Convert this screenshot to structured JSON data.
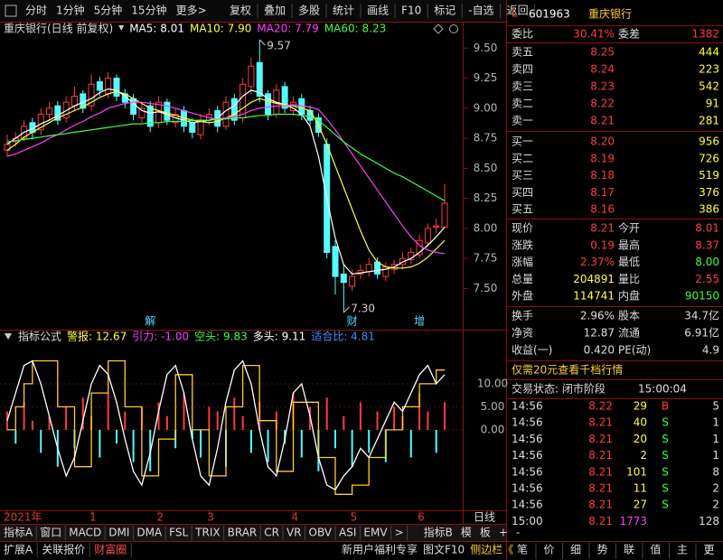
{
  "toolbar": {
    "tabs": [
      "分时",
      "1分钟",
      "5分钟",
      "15分钟",
      "更多>"
    ],
    "buttons": [
      "复权",
      "叠加",
      "多股",
      "统计",
      "画线",
      "F10",
      "标记",
      "-自选",
      "返回"
    ]
  },
  "chart_data": [
    {
      "type": "candlestick",
      "title": "重庆银行(日线 前复权)",
      "categories": [
        "2021年",
        null,
        null,
        null,
        null,
        null,
        null,
        null,
        null,
        null,
        "1",
        null,
        null,
        null,
        null,
        null,
        null,
        null,
        "2",
        null,
        null,
        null,
        null,
        null,
        "3",
        null,
        null,
        null,
        null,
        null,
        null,
        null,
        null,
        null,
        "4",
        null,
        null,
        null,
        null,
        null,
        null,
        "5",
        null,
        null,
        null,
        null,
        null,
        null,
        null,
        "6",
        null,
        null,
        null
      ],
      "open": [
        8.65,
        8.72,
        8.75,
        8.88,
        8.82,
        8.95,
        9.02,
        8.92,
        9.02,
        9.12,
        9.02,
        9.22,
        9.12,
        9.25,
        9.12,
        9.08,
        8.92,
        9.02,
        8.88,
        9.05,
        8.88,
        8.98,
        8.88,
        8.78,
        8.9,
        8.98,
        8.85,
        9.08,
        8.92,
        9.18,
        9.38,
        9.12,
        8.95,
        9.18,
        8.98,
        9.08,
        8.98,
        8.92,
        8.7,
        7.85,
        7.62,
        7.52,
        7.62,
        7.64,
        7.72,
        7.6,
        7.66,
        7.7,
        7.74,
        7.78,
        7.88,
        8.01,
        8.01
      ],
      "high": [
        8.78,
        8.8,
        8.9,
        8.92,
        9.0,
        9.05,
        9.06,
        9.1,
        9.18,
        9.15,
        9.28,
        9.26,
        9.3,
        9.28,
        9.16,
        9.12,
        9.05,
        9.06,
        9.1,
        9.08,
        9.0,
        9.02,
        8.92,
        8.95,
        9.0,
        9.02,
        9.1,
        9.12,
        9.25,
        9.42,
        9.57,
        9.15,
        9.2,
        9.22,
        9.1,
        9.12,
        9.02,
        8.96,
        8.75,
        7.9,
        7.7,
        7.66,
        7.7,
        7.75,
        7.76,
        7.72,
        7.74,
        7.8,
        7.84,
        7.95,
        8.04,
        8.08,
        8.37
      ],
      "low": [
        8.6,
        8.68,
        8.72,
        8.74,
        8.78,
        8.9,
        8.86,
        8.88,
        8.98,
        8.96,
        8.98,
        9.1,
        9.08,
        9.06,
        9.0,
        8.9,
        8.88,
        8.8,
        8.84,
        8.86,
        8.84,
        8.8,
        8.75,
        8.74,
        8.86,
        8.8,
        8.82,
        8.86,
        8.88,
        9.12,
        9.05,
        8.9,
        8.92,
        8.96,
        8.94,
        8.9,
        8.86,
        8.76,
        7.75,
        7.45,
        7.3,
        7.48,
        7.58,
        7.6,
        7.58,
        7.56,
        7.62,
        7.66,
        7.7,
        7.75,
        7.85,
        7.96,
        8.0
      ],
      "close": [
        8.7,
        8.75,
        8.85,
        8.8,
        8.95,
        9.0,
        8.9,
        9.05,
        9.1,
        9.0,
        9.2,
        9.15,
        9.25,
        9.1,
        9.05,
        8.95,
        9.0,
        8.85,
        9.05,
        8.9,
        8.95,
        8.85,
        8.8,
        8.9,
        8.95,
        8.85,
        9.05,
        8.9,
        9.2,
        9.35,
        9.1,
        8.95,
        9.15,
        9.0,
        9.05,
        8.95,
        8.9,
        8.8,
        7.8,
        7.6,
        7.55,
        7.6,
        7.65,
        7.7,
        7.62,
        7.68,
        7.7,
        7.75,
        7.8,
        7.9,
        8.0,
        8.02,
        8.21
      ],
      "up_color": "#ff3c3c",
      "down_color": "#54fcfc",
      "series": [
        {
          "name": "MA5: 8.01",
          "color": "#ffffff",
          "values": [
            8.7,
            8.75,
            8.8,
            8.83,
            8.87,
            8.9,
            8.94,
            8.98,
            9.02,
            9.05,
            9.08,
            9.13,
            9.16,
            9.15,
            9.1,
            9.04,
            8.98,
            8.96,
            8.97,
            8.95,
            8.92,
            8.9,
            8.88,
            8.89,
            8.9,
            8.92,
            8.98,
            9.02,
            9.1,
            9.15,
            9.13,
            9.08,
            9.05,
            9.03,
            9.0,
            8.95,
            8.85,
            8.6,
            8.25,
            7.92,
            7.7,
            7.62,
            7.63,
            7.64,
            7.65,
            7.66,
            7.68,
            7.72,
            7.75,
            7.8,
            7.86,
            7.93,
            8.01
          ]
        },
        {
          "name": "MA10: 7.90",
          "color": "#ffff3c",
          "values": [
            8.65,
            8.7,
            8.76,
            8.8,
            8.84,
            8.88,
            8.92,
            8.95,
            8.98,
            9.01,
            9.05,
            9.09,
            9.12,
            9.14,
            9.12,
            9.08,
            9.04,
            9.0,
            8.98,
            8.96,
            8.94,
            8.92,
            8.9,
            8.89,
            8.88,
            8.89,
            8.92,
            8.95,
            9.0,
            9.05,
            9.08,
            9.06,
            9.04,
            9.03,
            9.02,
            9.0,
            8.98,
            8.86,
            8.7,
            8.52,
            8.34,
            8.16,
            7.98,
            7.82,
            7.72,
            7.68,
            7.67,
            7.67,
            7.68,
            7.71,
            7.76,
            7.83,
            7.9
          ]
        },
        {
          "name": "MA20: 7.79",
          "color": "#ff3cff",
          "values": [
            8.6,
            8.62,
            8.65,
            8.68,
            8.71,
            8.75,
            8.78,
            8.82,
            8.86,
            8.89,
            8.93,
            8.96,
            9.0,
            9.02,
            9.04,
            9.05,
            9.05,
            9.04,
            9.03,
            9.02,
            9.0,
            8.98,
            8.96,
            8.94,
            8.92,
            8.91,
            8.92,
            8.93,
            8.95,
            8.98,
            9.0,
            9.01,
            9.02,
            9.02,
            9.03,
            9.02,
            9.01,
            8.99,
            8.91,
            8.82,
            8.72,
            8.62,
            8.52,
            8.42,
            8.32,
            8.22,
            8.12,
            8.02,
            7.93,
            7.86,
            7.82,
            7.8,
            7.79
          ]
        },
        {
          "name": "MA60: 8.23",
          "color": "#3cff3c",
          "values": [
            8.72,
            8.73,
            8.74,
            8.75,
            8.76,
            8.77,
            8.78,
            8.79,
            8.8,
            8.81,
            8.82,
            8.83,
            8.84,
            8.85,
            8.86,
            8.87,
            8.87,
            8.88,
            8.88,
            8.89,
            8.89,
            8.89,
            8.9,
            8.9,
            8.9,
            8.91,
            8.91,
            8.92,
            8.92,
            8.93,
            8.94,
            8.94,
            8.95,
            8.95,
            8.95,
            8.94,
            8.93,
            8.9,
            8.84,
            8.78,
            8.72,
            8.67,
            8.62,
            8.58,
            8.54,
            8.5,
            8.46,
            8.43,
            8.39,
            8.35,
            8.31,
            8.27,
            8.23
          ]
        }
      ],
      "ylim": [
        7.27,
        9.6
      ],
      "yticks": [
        {
          "value": 7.5,
          "label": "7.50"
        },
        {
          "value": 7.75,
          "label": "7.75"
        },
        {
          "value": 8,
          "label": "8.00"
        },
        {
          "value": 8.25,
          "label": "8.25"
        },
        {
          "value": 8.5,
          "label": "8.50"
        },
        {
          "value": 8.75,
          "label": "8.75"
        },
        {
          "value": 9,
          "label": "9.00"
        },
        {
          "value": 9.25,
          "label": "9.25"
        },
        {
          "value": 9.5,
          "label": "9.50"
        }
      ],
      "high_label": "9.57",
      "low_label": "7.30",
      "events": [
        null,
        null,
        null,
        null,
        null,
        null,
        null,
        null,
        null,
        null,
        null,
        null,
        null,
        null,
        null,
        null,
        null,
        "解",
        null,
        null,
        null,
        null,
        null,
        null,
        null,
        null,
        null,
        null,
        null,
        null,
        null,
        null,
        null,
        null,
        null,
        null,
        null,
        null,
        null,
        null,
        null,
        "财",
        null,
        null,
        null,
        null,
        null,
        null,
        null,
        "增",
        null,
        null,
        null
      ],
      "event_color": "#54d8fc",
      "axis_right_label": "日线"
    },
    {
      "type": "line",
      "title": "指标公式",
      "legend": [
        {
          "text": "警报: 12.67",
          "color": "#ffff3c"
        },
        {
          "text": "引力: -1.00",
          "color": "#ff3cff"
        },
        {
          "text": "空头: 9.83",
          "color": "#3cff3c"
        },
        {
          "text": "多头: 9.11",
          "color": "#ffffff"
        },
        {
          "text": "适合比: 4.81",
          "color": "#3c8cff"
        }
      ],
      "series": [
        {
          "style": "bar",
          "color": "#ff3c3c",
          "neg_color": "#54fcfc",
          "values": [
            4,
            -3,
            6,
            2,
            -5,
            3,
            -8,
            5,
            -4,
            7,
            3,
            -6,
            8,
            -3,
            4,
            -7,
            5,
            -9,
            6,
            3,
            -4,
            8,
            -2,
            -6,
            5,
            4,
            -8,
            7,
            3,
            -5,
            6,
            -7,
            4,
            -3,
            8,
            -6,
            5,
            -9,
            7,
            -4,
            3,
            -8,
            6,
            -5,
            4,
            -7,
            5,
            3,
            -6,
            8,
            4,
            -5,
            6
          ]
        },
        {
          "style": "step",
          "color": "#ffcc33",
          "values": [
            0,
            5,
            10,
            15,
            15,
            15,
            5,
            5,
            -8,
            -8,
            8,
            8,
            15,
            15,
            5,
            5,
            -10,
            -10,
            -2,
            -2,
            12,
            12,
            0,
            0,
            -10,
            -10,
            5,
            5,
            14,
            14,
            2,
            2,
            -9,
            -9,
            6,
            6,
            6,
            -6,
            -6,
            -14,
            -14,
            -12,
            -12,
            -6,
            -6,
            0,
            0,
            5,
            5,
            10,
            10,
            13,
            13
          ]
        },
        {
          "style": "line",
          "color": "#ffffff",
          "values": [
            2,
            8,
            14,
            15,
            10,
            3,
            -4,
            -10,
            -6,
            2,
            10,
            14,
            12,
            6,
            -2,
            -9,
            -12,
            -5,
            4,
            12,
            14,
            8,
            -2,
            -10,
            -12,
            -4,
            6,
            13,
            15,
            10,
            0,
            -8,
            -10,
            -2,
            8,
            10,
            3,
            -6,
            -12,
            -13,
            -10,
            -8,
            -4,
            -6,
            -2,
            2,
            6,
            4,
            8,
            12,
            14,
            10,
            12
          ]
        }
      ],
      "ylim": [
        -16.5,
        19.8
      ],
      "yticks": [
        {
          "value": 0,
          "label": "0.00"
        },
        {
          "value": 5,
          "label": "5.00"
        },
        {
          "value": 10,
          "label": "10.00"
        }
      ]
    }
  ],
  "bottom_tabs": {
    "a": [
      "指标A",
      "窗口",
      "MACD",
      "DMI",
      "DMA",
      "FSL",
      "TRIX",
      "BRAR",
      "CR",
      "VR",
      "OBV",
      "ASI",
      "EMV",
      ">"
    ],
    "b": [
      "指标B",
      "模",
      "板",
      "+",
      "-"
    ]
  },
  "status_bar": {
    "left": [
      "扩展A",
      "关联报价",
      "财富圈"
    ],
    "right": [
      "新用户福利专享",
      "图文F10",
      "侧边栏《"
    ]
  },
  "quote": {
    "badge": "L",
    "code": "601963",
    "name": "重庆银行",
    "ratio": [
      "委比",
      "30.41%",
      "委差",
      "1382"
    ],
    "asks": [
      [
        "卖五",
        "8.25",
        "444"
      ],
      [
        "卖四",
        "8.24",
        "223"
      ],
      [
        "卖三",
        "8.23",
        "542"
      ],
      [
        "卖二",
        "8.22",
        "91"
      ],
      [
        "卖一",
        "8.21",
        "281"
      ]
    ],
    "bids": [
      [
        "买一",
        "8.20",
        "956"
      ],
      [
        "买二",
        "8.19",
        "726"
      ],
      [
        "买三",
        "8.18",
        "519"
      ],
      [
        "买四",
        "8.17",
        "376"
      ],
      [
        "买五",
        "8.16",
        "386"
      ]
    ],
    "stats": [
      [
        "现价",
        "8.21",
        "今开",
        "8.01"
      ],
      [
        "涨跌",
        "0.19",
        "最高",
        "8.37"
      ],
      [
        "涨幅",
        "2.37%",
        "最低",
        "8.00"
      ],
      [
        "总量",
        "204891",
        "量比",
        "2.55"
      ],
      [
        "外盘",
        "114741",
        "内盘",
        "90150"
      ]
    ],
    "finance": [
      [
        "换手",
        "2.96%",
        "股本",
        "34.7亿"
      ],
      [
        "净资",
        "12.87",
        "流通",
        "6.91亿"
      ],
      [
        "收益(一)",
        "0.420",
        "PE(动)",
        "4.9"
      ]
    ],
    "promo": "仅需20元查看千档行情",
    "status": [
      "交易状态: 闭市阶段",
      "15:00:04"
    ],
    "trades": [
      [
        "14:56",
        "8.22",
        "29",
        "B",
        "5"
      ],
      [
        "14:56",
        "8.21",
        "40",
        "S",
        "1"
      ],
      [
        "14:56",
        "8.21",
        "20",
        "S",
        "1"
      ],
      [
        "14:56",
        "8.21",
        "2",
        "S",
        "1"
      ],
      [
        "14:56",
        "8.21",
        "101",
        "S",
        "8"
      ],
      [
        "14:56",
        "8.21",
        "11",
        "S",
        "2"
      ],
      [
        "14:56",
        "8.21",
        "27",
        "S",
        "2"
      ],
      [
        "15:00",
        "8.21",
        "1773",
        "128"
      ]
    ],
    "side_tabs": [
      "笔",
      "价",
      "细",
      "势",
      "联",
      "值",
      "主",
      "更"
    ]
  }
}
